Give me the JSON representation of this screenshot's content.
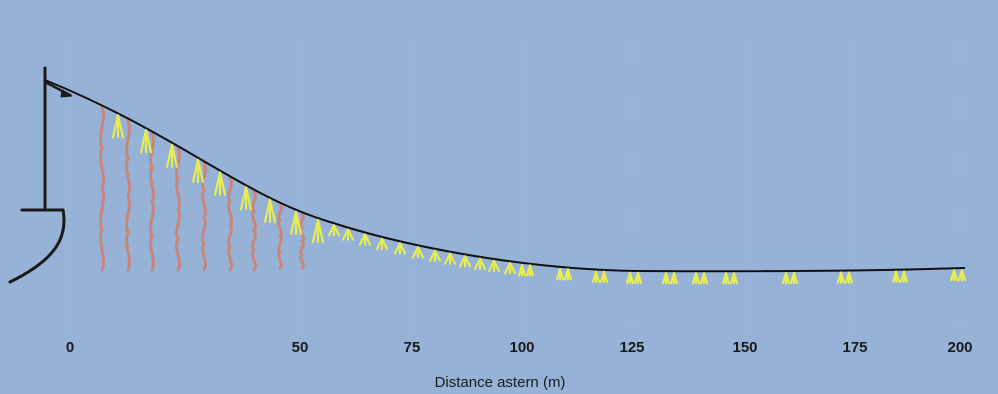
{
  "diagram": {
    "axis_title": "Distance astern (m)",
    "tick_labels": [
      "0",
      "50",
      "75",
      "100",
      "125",
      "150",
      "175",
      "200"
    ],
    "colors": {
      "background": "#96b2d6",
      "gridline": "#a7c0e0",
      "mainline": "#111111",
      "vessel": "#1a1a1a",
      "streamer": "#c9867c",
      "hook": "#e6ec52",
      "text": "#1a1a1a"
    },
    "icons": {
      "vessel": "vessel-stern-icon",
      "streamer": "streamer-line-icon",
      "hook": "baited-hook-icon"
    }
  }
}
